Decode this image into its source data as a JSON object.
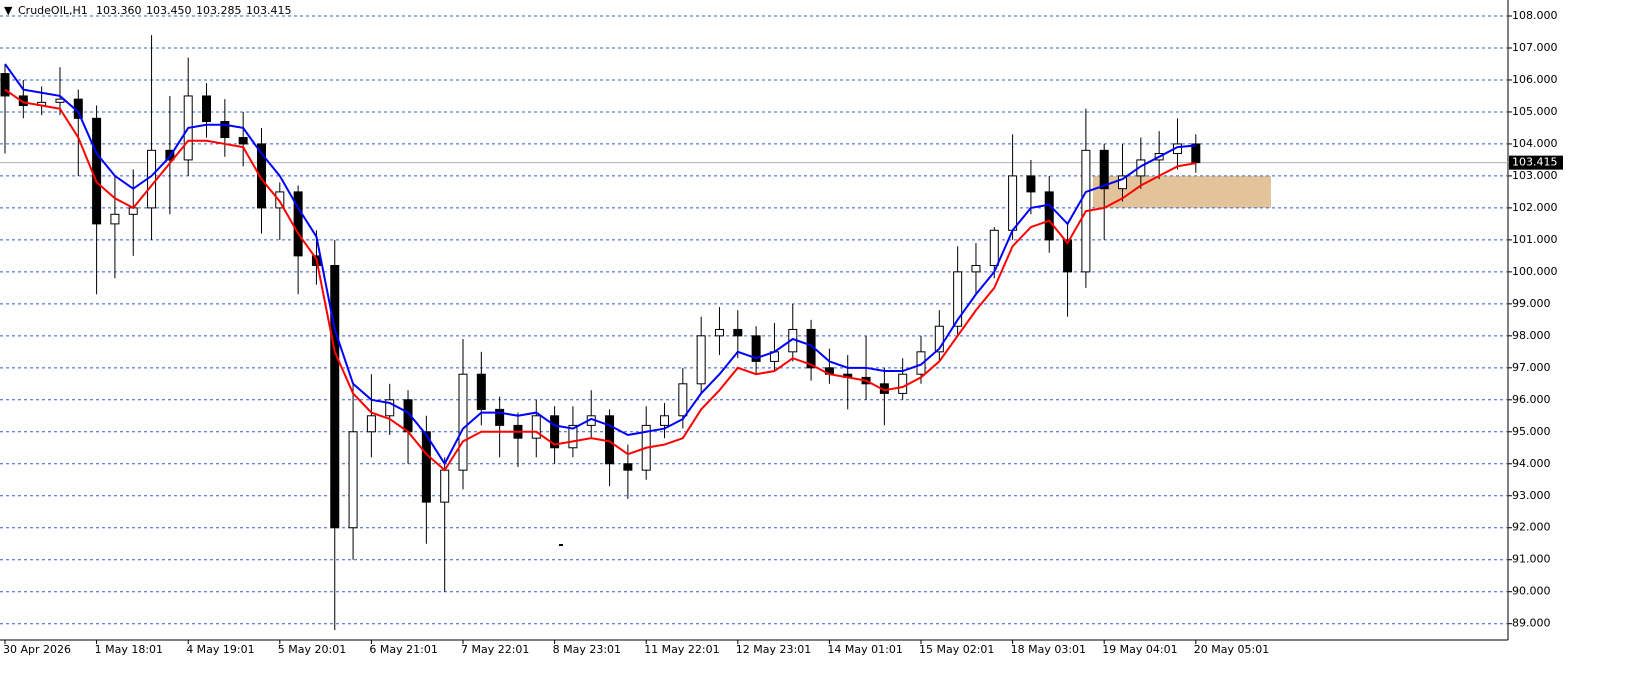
{
  "header": {
    "symbol": "CrudeOIL,H1",
    "open": "103.360",
    "high": "103.450",
    "low": "103.285",
    "close": "103.415"
  },
  "chart_data": {
    "type": "candlestick",
    "x_labels": [
      "30 Apr 2026",
      "1 May 18:01",
      "4 May 19:01",
      "5 May 20:01",
      "6 May 21:01",
      "7 May 22:01",
      "8 May 23:01",
      "11 May 22:01",
      "12 May 23:01",
      "14 May 01:01",
      "15 May 02:01",
      "18 May 03:01",
      "19 May 04:01",
      "20 May 05:01"
    ],
    "open": [
      106.2,
      105.5,
      105.2,
      105.3,
      105.4,
      104.8,
      101.5,
      101.8,
      102.0,
      103.8,
      103.5,
      105.5,
      104.7,
      104.2,
      104.0,
      102.0,
      102.5,
      100.5,
      100.2,
      92.0,
      95.0,
      95.5,
      96.0,
      95.0,
      92.8,
      93.8,
      96.8,
      95.7,
      95.2,
      94.8,
      95.5,
      94.5,
      95.2,
      95.5,
      94.0,
      93.8,
      95.2,
      95.5,
      96.5,
      98.0,
      98.2,
      98.0,
      97.2,
      97.5,
      98.2,
      97.0,
      96.8,
      96.7,
      96.5,
      96.2,
      96.8,
      97.5,
      98.3,
      100.0,
      100.2,
      101.3,
      103.0,
      102.5,
      101.0,
      100.0,
      103.8,
      102.6,
      103.0,
      103.5,
      103.7,
      104.0
    ],
    "high": [
      106.5,
      106.0,
      105.8,
      106.4,
      105.7,
      105.2,
      103.0,
      103.2,
      107.4,
      105.5,
      106.7,
      105.9,
      105.4,
      105.0,
      104.5,
      102.8,
      102.7,
      101.3,
      101.0,
      96.5,
      96.8,
      96.5,
      96.3,
      95.5,
      94.2,
      97.9,
      97.5,
      96.1,
      95.6,
      96.0,
      95.8,
      95.8,
      96.3,
      95.7,
      94.6,
      95.8,
      95.9,
      97.0,
      98.6,
      98.9,
      98.8,
      98.3,
      98.4,
      99.0,
      98.5,
      97.6,
      97.4,
      98.0,
      97.0,
      97.3,
      98.0,
      98.8,
      100.8,
      100.9,
      101.4,
      104.3,
      103.5,
      103.0,
      101.5,
      105.1,
      104.0,
      104.0,
      104.2,
      104.4,
      104.8,
      104.3
    ],
    "low": [
      103.7,
      104.8,
      104.9,
      104.9,
      103.0,
      99.3,
      99.8,
      100.5,
      101.0,
      101.8,
      103.0,
      104.2,
      103.6,
      103.3,
      101.2,
      101.0,
      99.3,
      99.6,
      88.8,
      91.0,
      94.2,
      94.9,
      94.0,
      91.5,
      90.0,
      93.2,
      95.2,
      94.2,
      93.9,
      94.2,
      94.0,
      94.2,
      94.8,
      93.3,
      92.9,
      93.5,
      94.8,
      95.1,
      96.2,
      97.4,
      97.3,
      96.8,
      96.9,
      97.2,
      96.6,
      96.5,
      95.7,
      96.0,
      95.2,
      96.0,
      96.5,
      97.2,
      98.0,
      99.3,
      99.8,
      101.0,
      101.8,
      100.6,
      98.6,
      99.5,
      101.0,
      102.2,
      102.6,
      102.9,
      103.2,
      103.1
    ],
    "close": [
      105.5,
      105.2,
      105.3,
      105.4,
      104.8,
      101.5,
      101.8,
      102.0,
      103.8,
      103.5,
      105.5,
      104.7,
      104.2,
      104.0,
      102.0,
      102.5,
      100.5,
      100.2,
      92.0,
      95.0,
      95.5,
      96.0,
      95.0,
      92.8,
      93.8,
      96.8,
      95.7,
      95.2,
      94.8,
      95.5,
      94.5,
      95.2,
      95.5,
      94.0,
      93.8,
      95.2,
      95.5,
      96.5,
      98.0,
      98.2,
      98.0,
      97.2,
      97.5,
      98.2,
      97.0,
      96.8,
      96.7,
      96.5,
      96.2,
      96.8,
      97.5,
      98.3,
      100.0,
      100.2,
      101.3,
      103.0,
      102.5,
      101.0,
      100.0,
      103.8,
      102.6,
      103.0,
      103.5,
      103.7,
      104.0,
      103.415
    ],
    "series": [
      {
        "color": "#0000ff",
        "values": [
          106.5,
          105.7,
          105.6,
          105.5,
          105.0,
          103.7,
          103.0,
          102.6,
          103.0,
          103.6,
          104.5,
          104.6,
          104.6,
          104.5,
          103.7,
          103.0,
          102.0,
          101.1,
          98.2,
          96.5,
          96.0,
          95.9,
          95.6,
          94.9,
          94.0,
          95.1,
          95.6,
          95.6,
          95.5,
          95.6,
          95.2,
          95.1,
          95.4,
          95.2,
          94.9,
          95.0,
          95.1,
          95.4,
          96.2,
          96.8,
          97.5,
          97.3,
          97.5,
          97.9,
          97.7,
          97.2,
          97.0,
          97.0,
          96.9,
          96.9,
          97.1,
          97.6,
          98.5,
          99.3,
          100.0,
          101.3,
          102.0,
          102.1,
          101.5,
          102.5,
          102.7,
          102.9,
          103.3,
          103.6,
          103.9,
          103.95
        ]
      },
      {
        "color": "#ff0000",
        "values": [
          105.7,
          105.3,
          105.2,
          105.1,
          104.2,
          102.8,
          102.3,
          102.0,
          102.7,
          103.4,
          104.1,
          104.1,
          104.0,
          103.9,
          102.9,
          102.2,
          101.2,
          100.4,
          97.5,
          96.2,
          95.6,
          95.4,
          95.0,
          94.3,
          93.8,
          94.7,
          95.0,
          95.0,
          95.0,
          95.0,
          94.6,
          94.7,
          94.8,
          94.7,
          94.3,
          94.5,
          94.6,
          94.8,
          95.7,
          96.3,
          97.0,
          96.8,
          96.9,
          97.3,
          97.1,
          96.8,
          96.7,
          96.6,
          96.3,
          96.4,
          96.7,
          97.2,
          98.0,
          98.8,
          99.5,
          100.8,
          101.4,
          101.6,
          100.9,
          101.9,
          102.0,
          102.3,
          102.7,
          103.0,
          103.3,
          103.4
        ]
      }
    ],
    "ylim": [
      88.49,
      108.5
    ],
    "yticks": [
      {
        "value": 89,
        "label": "89.000"
      },
      {
        "value": 90,
        "label": "90.000"
      },
      {
        "value": 91,
        "label": "91.000"
      },
      {
        "value": 92,
        "label": "92.000"
      },
      {
        "value": 93,
        "label": "93.000"
      },
      {
        "value": 94,
        "label": "94.000"
      },
      {
        "value": 95,
        "label": "95.000"
      },
      {
        "value": 96,
        "label": "96.000"
      },
      {
        "value": 97,
        "label": "97.000"
      },
      {
        "value": 98,
        "label": "98.000"
      },
      {
        "value": 99,
        "label": "99.000"
      },
      {
        "value": 100,
        "label": "100.000"
      },
      {
        "value": 101,
        "label": "101.000"
      },
      {
        "value": 102,
        "label": "102.000"
      },
      {
        "value": 103,
        "label": "103.000"
      },
      {
        "value": 104,
        "label": "104.000"
      },
      {
        "value": 105,
        "label": "105.000"
      },
      {
        "value": 106,
        "label": "106.000"
      },
      {
        "value": 107,
        "label": "107.000"
      },
      {
        "value": 108,
        "label": "108.000"
      }
    ],
    "last": {
      "value": 103.415,
      "label": "103.415"
    },
    "zone": {
      "low": 102,
      "high": 103,
      "color": "#deb887"
    },
    "grid": true
  }
}
